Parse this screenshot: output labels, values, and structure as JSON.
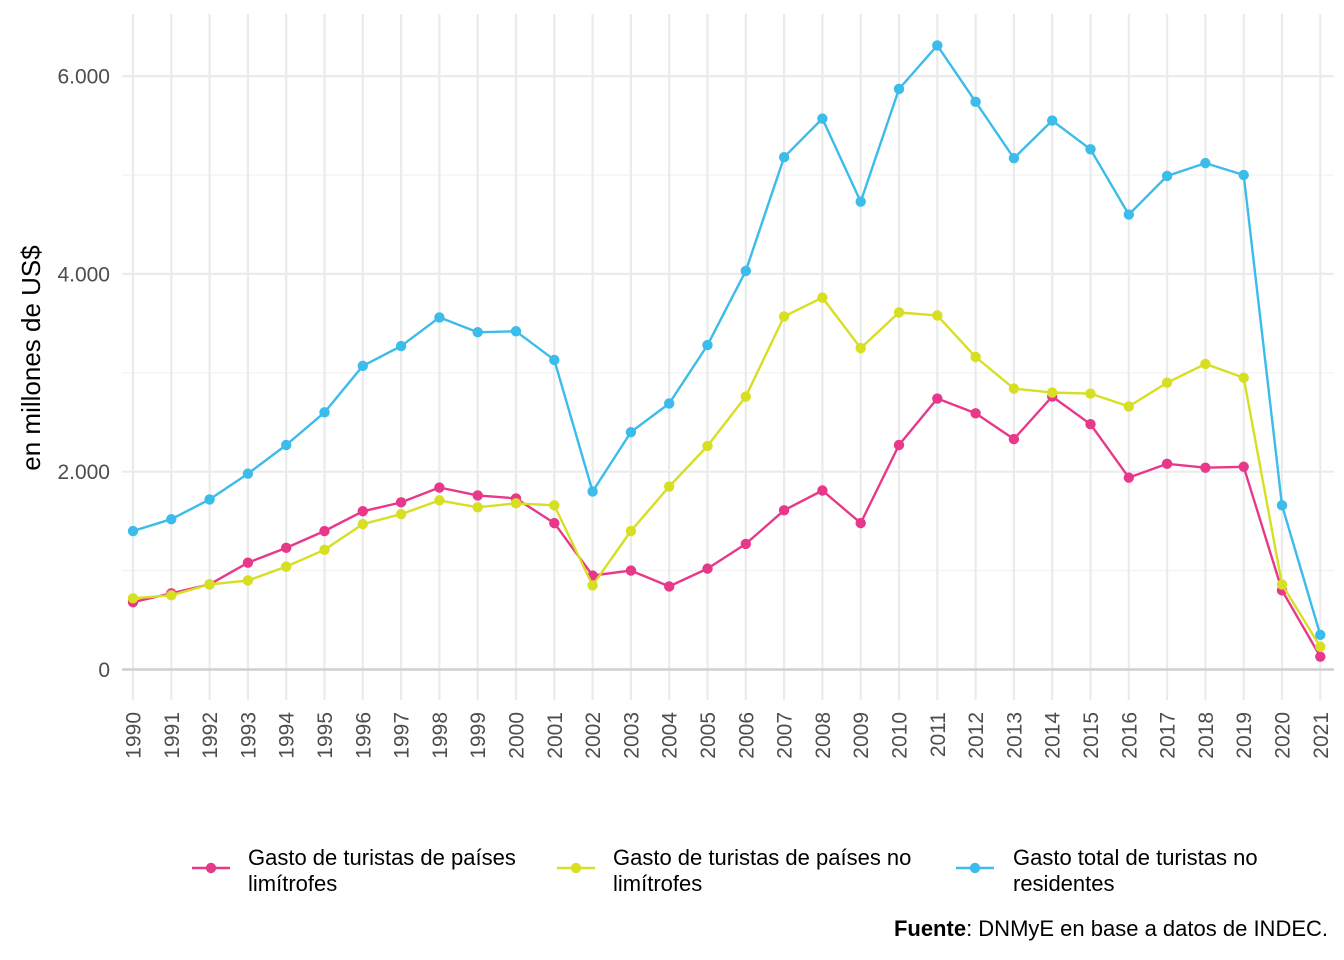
{
  "chart_data": {
    "type": "line",
    "ylabel": "en millones de US$",
    "ylim": [
      0,
      6500
    ],
    "yticks": [
      0,
      2000,
      4000,
      6000
    ],
    "ytick_labels": [
      "0",
      "2.000",
      "4.000",
      "6.000"
    ],
    "x": [
      1990,
      1991,
      1992,
      1993,
      1994,
      1995,
      1996,
      1997,
      1998,
      1999,
      2000,
      2001,
      2002,
      2003,
      2004,
      2005,
      2006,
      2007,
      2008,
      2009,
      2010,
      2011,
      2012,
      2013,
      2014,
      2015,
      2016,
      2017,
      2018,
      2019,
      2020,
      2021
    ],
    "grid": true,
    "legend_position": "bottom",
    "series": [
      {
        "name": "Gasto de turistas de países limítrofes",
        "legend_lines": [
          "Gasto de turistas de países",
          "limítrofes"
        ],
        "color": "#e8388a",
        "values": [
          680,
          770,
          860,
          1080,
          1230,
          1400,
          1600,
          1690,
          1840,
          1760,
          1730,
          1480,
          950,
          1000,
          840,
          1020,
          1270,
          1610,
          1810,
          1480,
          2270,
          2740,
          2590,
          2330,
          2760,
          2480,
          1940,
          2080,
          2040,
          2050,
          800,
          130
        ]
      },
      {
        "name": "Gasto de turistas de países no limítrofes",
        "legend_lines": [
          "Gasto de turistas de países no",
          "limítrofes"
        ],
        "color": "#d7df23",
        "values": [
          720,
          750,
          860,
          900,
          1040,
          1210,
          1470,
          1570,
          1710,
          1640,
          1680,
          1660,
          850,
          1400,
          1850,
          2260,
          2760,
          3570,
          3760,
          3250,
          3610,
          3580,
          3160,
          2840,
          2800,
          2790,
          2660,
          2900,
          3090,
          2950,
          860,
          230
        ]
      },
      {
        "name": "Gasto total de turistas no residentes",
        "legend_lines": [
          "Gasto total de turistas no",
          "residentes"
        ],
        "color": "#3bbceb",
        "values": [
          1400,
          1520,
          1720,
          1980,
          2270,
          2600,
          3070,
          3270,
          3560,
          3410,
          3420,
          3130,
          1800,
          2400,
          2690,
          3280,
          4030,
          5180,
          5570,
          4730,
          5870,
          6310,
          5740,
          5170,
          5550,
          5260,
          4600,
          4990,
          5120,
          5000,
          1660,
          350
        ]
      }
    ]
  },
  "caption": {
    "bold": "Fuente",
    "text": ": DNMyE en base a datos de INDEC."
  }
}
